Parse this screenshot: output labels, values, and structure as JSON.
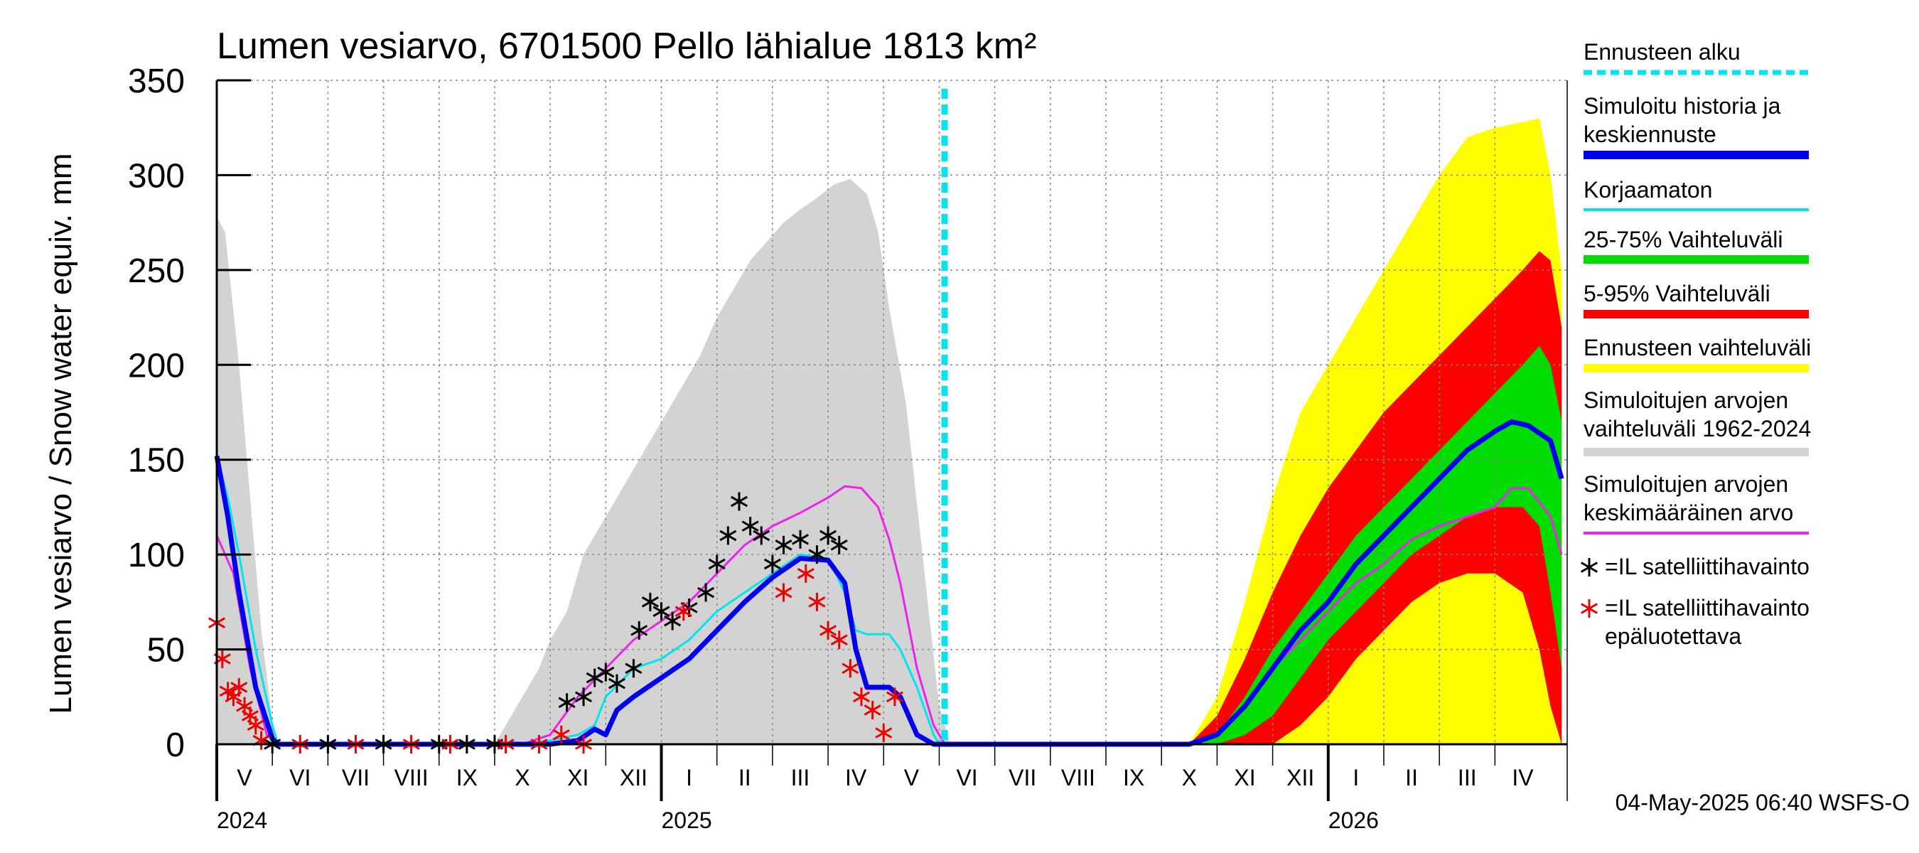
{
  "chart_data": {
    "type": "area",
    "title": "Lumen vesiarvo, 6701500 Pello lähialue 1813 km²",
    "ylabel": "Lumen vesiarvo / Snow water equiv.    mm",
    "ylim": [
      0,
      350
    ],
    "yticks": [
      0,
      50,
      100,
      150,
      200,
      250,
      300,
      350
    ],
    "xlim": [
      "2024-04-01",
      "2026-05-10"
    ],
    "forecast_start": "2025-05-04",
    "months": [
      {
        "label": "V",
        "start": "2024-04-01",
        "end": "2024-05-01"
      },
      {
        "label": "VI",
        "start": "2024-05-01",
        "end": "2024-06-01"
      },
      {
        "label": "VII",
        "start": "2024-06-01",
        "end": "2024-07-01"
      },
      {
        "label": "VIII",
        "start": "2024-07-01",
        "end": "2024-08-01"
      },
      {
        "label": "IX",
        "start": "2024-08-01",
        "end": "2024-09-01"
      },
      {
        "label": "X",
        "start": "2024-09-01",
        "end": "2024-10-01"
      },
      {
        "label": "XI",
        "start": "2024-10-01",
        "end": "2024-11-01"
      },
      {
        "label": "XII",
        "start": "2024-11-01",
        "end": "2024-12-01"
      },
      {
        "label": "I",
        "start": "2024-12-01",
        "end": "2025-01-01"
      },
      {
        "label": "II",
        "start": "2025-01-01",
        "end": "2025-02-01"
      },
      {
        "label": "III",
        "start": "2025-02-01",
        "end": "2025-03-01"
      },
      {
        "label": "IV",
        "start": "2025-03-01",
        "end": "2025-04-01"
      },
      {
        "label": "V",
        "start": "2025-04-01",
        "end": "2025-05-01"
      },
      {
        "label": "VI",
        "start": "2025-05-01",
        "end": "2025-06-01"
      },
      {
        "label": "VII",
        "start": "2025-06-01",
        "end": "2025-07-01"
      },
      {
        "label": "VIII",
        "start": "2025-07-01",
        "end": "2025-08-01"
      },
      {
        "label": "IX",
        "start": "2025-08-01",
        "end": "2025-09-01"
      },
      {
        "label": "X",
        "start": "2025-09-01",
        "end": "2025-10-01"
      },
      {
        "label": "XI",
        "start": "2025-10-01",
        "end": "2025-11-01"
      },
      {
        "label": "XII",
        "start": "2025-11-01",
        "end": "2025-12-01"
      },
      {
        "label": "I",
        "start": "2025-12-01",
        "end": "2026-01-01"
      },
      {
        "label": "II",
        "start": "2026-01-01",
        "end": "2026-02-01"
      },
      {
        "label": "III",
        "start": "2026-02-01",
        "end": "2026-03-01"
      },
      {
        "label": "IV",
        "start": "2026-03-01",
        "end": "2026-04-01"
      }
    ],
    "years": [
      {
        "label": "2024",
        "date": "2024-04-01"
      },
      {
        "label": "2025",
        "date": "2024-12-01"
      },
      {
        "label": "2026",
        "date": "2025-12-01"
      }
    ],
    "x_unit": "months since 2024-04-01",
    "series": [
      {
        "name": "Simuloitujen arvojen vaihteluväli 1962-2024",
        "kind": "band",
        "color": "#d3d3d3",
        "x": [
          0,
          0.15,
          0.4,
          0.8,
          1.05,
          5.0,
          5.2,
          5.5,
          5.8,
          6.0,
          6.3,
          6.6,
          6.9,
          7.2,
          7.5,
          7.8,
          8.1,
          8.4,
          8.7,
          9.0,
          9.3,
          9.6,
          9.9,
          10.2,
          10.5,
          10.8,
          11.1,
          11.4,
          11.7,
          11.9,
          12.1,
          12.4,
          12.7,
          13.0,
          13.2,
          17.5,
          18.0,
          18.5,
          19.0,
          19.5,
          20.0,
          20.5,
          21.0,
          21.5,
          22.0,
          22.5,
          23.0,
          23.5,
          24.0,
          24.2
        ],
        "upper": [
          278,
          270,
          200,
          60,
          0,
          0,
          10,
          25,
          40,
          55,
          70,
          100,
          115,
          130,
          145,
          160,
          175,
          190,
          205,
          225,
          240,
          255,
          265,
          275,
          282,
          288,
          295,
          298,
          290,
          270,
          230,
          180,
          100,
          20,
          0,
          0,
          0,
          0,
          0,
          0,
          0,
          0,
          0,
          0,
          0,
          0,
          0,
          0,
          0,
          0
        ],
        "lower": [
          0,
          0,
          0,
          0,
          0,
          0,
          0,
          0,
          0,
          0,
          0,
          0,
          0,
          0,
          0,
          0,
          0,
          0,
          0,
          0,
          0,
          0,
          0,
          0,
          0,
          0,
          0,
          0,
          0,
          0,
          0,
          0,
          0,
          0,
          0,
          0,
          0,
          0,
          0,
          0,
          0,
          0,
          0,
          0,
          0,
          0,
          0,
          0,
          0,
          0
        ]
      },
      {
        "name": "Ennusteen vaihteluväli",
        "kind": "band",
        "color": "#ffff00",
        "x": [
          12.9,
          13.2,
          17.5,
          18.0,
          18.5,
          19.0,
          19.5,
          20.0,
          20.5,
          21.0,
          21.5,
          22.0,
          22.5,
          23.0,
          23.5,
          23.8,
          24.0,
          24.2
        ],
        "upper": [
          0,
          0,
          0,
          25,
          75,
          130,
          175,
          200,
          225,
          250,
          275,
          300,
          320,
          325,
          328,
          330,
          300,
          250
        ],
        "lower": [
          0,
          0,
          0,
          0,
          0,
          0,
          0,
          0,
          0,
          0,
          0,
          0,
          0,
          0,
          0,
          0,
          0,
          0
        ]
      },
      {
        "name": "5-95% Vaihteluväli",
        "kind": "band",
        "color": "#ff0000",
        "x": [
          12.9,
          13.2,
          17.5,
          18.0,
          18.5,
          19.0,
          19.5,
          20.0,
          20.5,
          21.0,
          21.5,
          22.0,
          22.5,
          23.0,
          23.5,
          23.8,
          24.0,
          24.2
        ],
        "upper": [
          0,
          0,
          0,
          15,
          45,
          80,
          110,
          135,
          155,
          175,
          190,
          205,
          220,
          235,
          250,
          260,
          255,
          220
        ],
        "lower": [
          0,
          0,
          0,
          0,
          0,
          0,
          10,
          25,
          45,
          60,
          75,
          85,
          90,
          90,
          80,
          50,
          20,
          0
        ]
      },
      {
        "name": "25-75% Vaihteluväli",
        "kind": "band",
        "color": "#00dd00",
        "x": [
          13.2,
          17.5,
          18.0,
          18.5,
          19.0,
          19.5,
          20.0,
          20.5,
          21.0,
          21.5,
          22.0,
          22.5,
          23.0,
          23.5,
          23.8,
          24.0,
          24.2
        ],
        "upper": [
          0,
          0,
          5,
          25,
          50,
          70,
          90,
          110,
          125,
          140,
          155,
          170,
          185,
          200,
          210,
          200,
          170
        ],
        "lower": [
          0,
          0,
          0,
          5,
          15,
          35,
          55,
          70,
          85,
          100,
          110,
          120,
          125,
          125,
          115,
          80,
          40
        ]
      },
      {
        "name": "Simuloitujen arvojen keskimääräinen arvo",
        "kind": "line",
        "color": "#ee22ee",
        "width": 3,
        "x": [
          0,
          0.3,
          0.6,
          0.9,
          1.1,
          5.5,
          6.0,
          6.5,
          7.0,
          7.5,
          8.0,
          8.5,
          9.0,
          9.5,
          10.0,
          10.5,
          11.0,
          11.3,
          11.6,
          11.9,
          12.1,
          12.3,
          12.6,
          12.9,
          13.1,
          17.5,
          18.0,
          18.5,
          19.0,
          19.5,
          20.0,
          20.5,
          21.0,
          21.5,
          22.0,
          22.5,
          23.0,
          23.3,
          23.6,
          24.0,
          24.2
        ],
        "y": [
          110,
          90,
          40,
          5,
          0,
          0,
          5,
          25,
          40,
          55,
          65,
          75,
          90,
          105,
          115,
          122,
          130,
          136,
          135,
          125,
          108,
          85,
          40,
          10,
          0,
          0,
          5,
          20,
          40,
          55,
          70,
          85,
          95,
          108,
          115,
          120,
          125,
          135,
          135,
          120,
          100
        ]
      },
      {
        "name": "Korjaamaton",
        "kind": "line",
        "color": "#00e5ee",
        "width": 3,
        "x": [
          0,
          0.2,
          0.4,
          0.7,
          1.0,
          1.1,
          5.5,
          6.0,
          6.5,
          6.8,
          7.0,
          7.5,
          8.0,
          8.5,
          9.0,
          9.5,
          10.0,
          10.5,
          11.0,
          11.3,
          11.5,
          11.7,
          11.9,
          12.1,
          12.3,
          12.6,
          12.9,
          13.0,
          13.2
        ],
        "y": [
          152,
          130,
          100,
          50,
          10,
          0,
          0,
          2,
          5,
          10,
          25,
          40,
          45,
          55,
          70,
          80,
          90,
          100,
          98,
          80,
          60,
          58,
          58,
          58,
          50,
          30,
          5,
          0,
          0
        ]
      },
      {
        "name": "Simuloitu historia ja keskiennuste",
        "kind": "line",
        "color": "#0000ee",
        "width": 7,
        "x": [
          0,
          0.2,
          0.4,
          0.7,
          1.0,
          1.1,
          5.5,
          6.0,
          6.5,
          6.8,
          7.0,
          7.2,
          7.5,
          8.0,
          8.5,
          9.0,
          9.5,
          10.0,
          10.5,
          11.0,
          11.3,
          11.5,
          11.7,
          11.9,
          12.1,
          12.3,
          12.6,
          12.9,
          13.0,
          13.2,
          17.5,
          18.0,
          18.5,
          19.0,
          19.5,
          20.0,
          20.5,
          21.0,
          21.5,
          22.0,
          22.5,
          23.0,
          23.3,
          23.6,
          24.0,
          24.2
        ],
        "y": [
          152,
          120,
          80,
          30,
          3,
          0,
          0,
          0,
          2,
          8,
          5,
          18,
          25,
          35,
          45,
          60,
          75,
          88,
          98,
          97,
          85,
          50,
          30,
          30,
          30,
          25,
          5,
          0,
          0,
          0,
          0,
          5,
          20,
          40,
          60,
          75,
          95,
          110,
          125,
          140,
          155,
          165,
          170,
          168,
          160,
          140
        ]
      },
      {
        "name": "=IL satelliittihavainto",
        "kind": "points",
        "color": "#000000",
        "x": [
          1.0,
          2.0,
          3.0,
          4.0,
          4.5,
          5.0,
          6.3,
          6.6,
          6.8,
          7.0,
          7.2,
          7.5,
          7.6,
          7.8,
          8.0,
          8.2,
          8.5,
          8.8,
          9.0,
          9.2,
          9.4,
          9.6,
          9.8,
          10.0,
          10.2,
          10.5,
          10.8,
          11.0,
          11.2
        ],
        "y": [
          0,
          0,
          0,
          0,
          0,
          0,
          22,
          25,
          35,
          38,
          32,
          40,
          60,
          75,
          70,
          65,
          72,
          80,
          95,
          110,
          128,
          115,
          110,
          95,
          105,
          108,
          100,
          110,
          105
        ]
      },
      {
        "name": "=IL satelliittihavainto epäluotettava",
        "kind": "points",
        "color": "#ee0000",
        "x": [
          0.0,
          0.1,
          0.2,
          0.3,
          0.4,
          0.5,
          0.6,
          0.7,
          0.8,
          1.5,
          2.5,
          3.5,
          4.2,
          5.2,
          5.8,
          6.2,
          6.6,
          8.4,
          10.2,
          10.6,
          10.8,
          11.0,
          11.2,
          11.4,
          11.6,
          11.8,
          12.0,
          12.2
        ],
        "y": [
          64,
          45,
          28,
          25,
          30,
          20,
          15,
          10,
          2,
          0,
          0,
          0,
          0,
          0,
          0,
          5,
          0,
          70,
          80,
          90,
          75,
          60,
          55,
          40,
          25,
          18,
          6,
          25
        ]
      }
    ],
    "legend": [
      {
        "label": "Ennusteen alku",
        "style": "dashed",
        "color": "#00e5ee"
      },
      {
        "label": "Simuloitu historia ja keskiennuste",
        "style": "thick",
        "color": "#0000ee"
      },
      {
        "label": "Korjaamaton",
        "style": "line",
        "color": "#00e5ee"
      },
      {
        "label": "25-75% Vaihteluväli",
        "style": "thick",
        "color": "#00dd00"
      },
      {
        "label": "5-95% Vaihteluväli",
        "style": "thick",
        "color": "#ff0000"
      },
      {
        "label": "Ennusteen vaihteluväli",
        "style": "thick",
        "color": "#ffff00"
      },
      {
        "label": "Simuloitujen arvojen vaihteluväli 1962-2024",
        "style": "thick",
        "color": "#d3d3d3"
      },
      {
        "label": "Simuloitujen arvojen keskimääräinen arvo",
        "style": "line",
        "color": "#ee22ee"
      },
      {
        "label": "=IL satelliittihavainto",
        "style": "marker",
        "color": "#000000"
      },
      {
        "label": "=IL satelliittihavainto epäluotettava",
        "style": "marker",
        "color": "#ee0000"
      }
    ],
    "footer": "04-May-2025 06:40 WSFS-O"
  }
}
